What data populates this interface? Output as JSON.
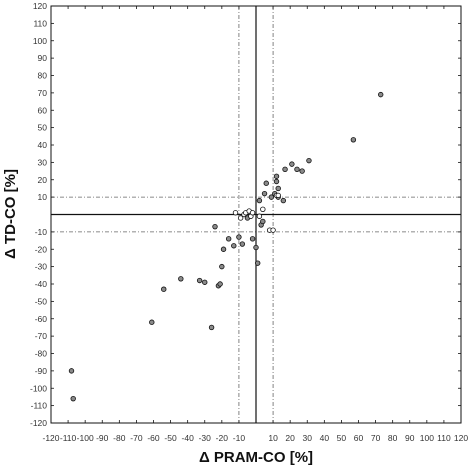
{
  "chart_data": {
    "type": "scatter",
    "title": "",
    "xlabel": "Δ PRAM-CO [%]",
    "ylabel": "Δ TD-CO [%]",
    "xlim": [
      -120,
      120
    ],
    "ylim": [
      -120,
      120
    ],
    "xticks": [
      -120,
      -110,
      -100,
      -90,
      -80,
      -70,
      -60,
      -50,
      -40,
      -30,
      -20,
      -10,
      0,
      10,
      20,
      30,
      40,
      50,
      60,
      70,
      80,
      90,
      100,
      110,
      120
    ],
    "yticks": [
      120,
      110,
      100,
      90,
      80,
      70,
      60,
      50,
      40,
      30,
      20,
      10,
      0,
      -10,
      -20,
      -30,
      -40,
      -50,
      -60,
      -70,
      -80,
      -90,
      -100,
      -110,
      -120
    ],
    "xtick_labels": [
      "-120",
      "-110",
      "-100",
      "-90",
      "-80",
      "-70",
      "-60",
      "-50",
      "-40",
      "-30",
      "-20",
      "-10",
      "",
      "10",
      "20",
      "30",
      "40",
      "50",
      "60",
      "70",
      "80",
      "90",
      "100",
      "110",
      "120"
    ],
    "ytick_labels": [
      "120",
      "110",
      "100",
      "90",
      "80",
      "70",
      "60",
      "50",
      "40",
      "30",
      "20",
      "10",
      "",
      "-10",
      "-20",
      "-30",
      "-40",
      "-50",
      "-60",
      "-70",
      "-80",
      "-90",
      "-100",
      "-110",
      "-120"
    ],
    "reference_lines": {
      "vertical_dashed": [
        -10,
        10
      ],
      "horizontal_dashed": [
        -10,
        10
      ],
      "axes_solid": [
        0
      ]
    },
    "grid": false,
    "series": [
      {
        "marker": "filled-grey",
        "points": [
          [
            -108,
            -90
          ],
          [
            -107,
            -106
          ],
          [
            -61,
            -62
          ],
          [
            -54,
            -43
          ],
          [
            -44,
            -37
          ],
          [
            -33,
            -38
          ],
          [
            -30,
            -39
          ],
          [
            -26,
            -65
          ],
          [
            -24,
            -7
          ],
          [
            -22,
            -41
          ],
          [
            -21,
            -40
          ],
          [
            -20,
            -30
          ],
          [
            -19,
            -20
          ],
          [
            -16,
            -14
          ],
          [
            -13,
            -18
          ],
          [
            -8,
            -17
          ],
          [
            -10,
            -13
          ],
          [
            -5,
            -2
          ],
          [
            0,
            -19
          ],
          [
            1,
            -28
          ],
          [
            3,
            -6
          ],
          [
            2,
            8
          ],
          [
            4,
            -4
          ],
          [
            6,
            18
          ],
          [
            9,
            10
          ],
          [
            11,
            12
          ],
          [
            12,
            22
          ],
          [
            13,
            15
          ],
          [
            12,
            19
          ],
          [
            13,
            10
          ],
          [
            16,
            8
          ],
          [
            17,
            26
          ],
          [
            21,
            29
          ],
          [
            24,
            26
          ],
          [
            27,
            25
          ],
          [
            31,
            31
          ],
          [
            57,
            43
          ],
          [
            73,
            69
          ],
          [
            5,
            12
          ],
          [
            -2,
            -14
          ]
        ]
      },
      {
        "marker": "open",
        "points": [
          [
            -12,
            1
          ],
          [
            -9,
            -2
          ],
          [
            -7,
            0
          ],
          [
            -6,
            1
          ],
          [
            -4,
            2
          ],
          [
            -3,
            -1
          ],
          [
            2,
            -1
          ],
          [
            4,
            3
          ],
          [
            8,
            -9
          ],
          [
            10,
            -9
          ],
          [
            12,
            11
          ],
          [
            13,
            11
          ],
          [
            -2,
            1
          ]
        ]
      }
    ]
  }
}
